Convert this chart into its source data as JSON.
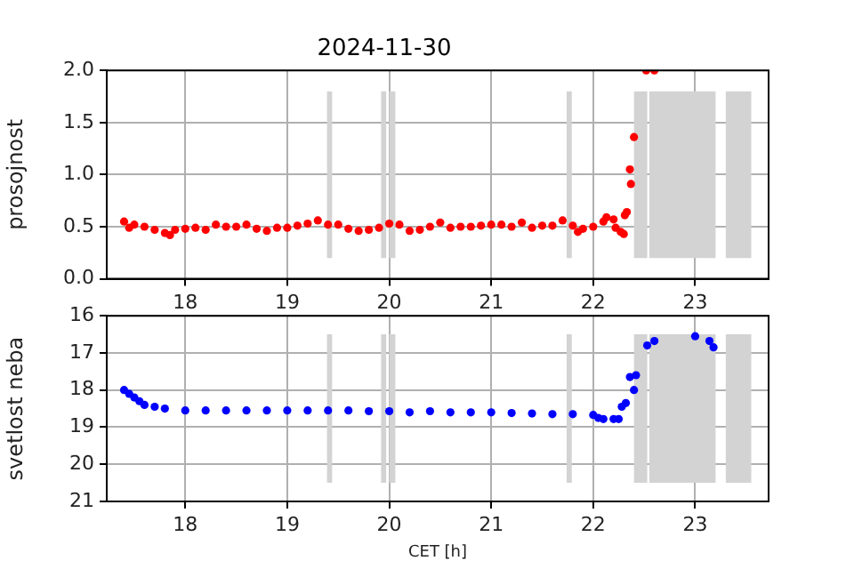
{
  "chart_data": [
    {
      "type": "scatter",
      "title": "2024-11-30",
      "ylabel": "prosojnost",
      "xlim": [
        17.23,
        23.72
      ],
      "xticks": [
        18,
        19,
        20,
        21,
        22,
        23
      ],
      "ylim": [
        0,
        2
      ],
      "yticks": [
        {
          "value": 0,
          "label": "0.0"
        },
        0.5,
        {
          "value": 1,
          "label": "1.0"
        },
        1.5,
        {
          "value": 2,
          "label": "2.0"
        }
      ],
      "grid": true,
      "legend": false,
      "marker": "circle",
      "series": [
        {
          "color": "#ff0000",
          "x": [
            17.4,
            17.45,
            17.5,
            17.6,
            17.7,
            17.8,
            17.85,
            17.9,
            18.0,
            18.1,
            18.2,
            18.3,
            18.4,
            18.5,
            18.6,
            18.7,
            18.8,
            18.9,
            19.0,
            19.1,
            19.2,
            19.3,
            19.4,
            19.5,
            19.6,
            19.7,
            19.8,
            19.9,
            20.0,
            20.1,
            20.2,
            20.3,
            20.4,
            20.5,
            20.6,
            20.7,
            20.8,
            20.9,
            21.0,
            21.1,
            21.2,
            21.3,
            21.4,
            21.5,
            21.6,
            21.7,
            21.8,
            21.85,
            21.9,
            22.0,
            22.1,
            22.13,
            22.2,
            22.22,
            22.27,
            22.3,
            22.31,
            22.33,
            22.36,
            22.37,
            22.4,
            22.52,
            22.6
          ],
          "values": [
            0.55,
            0.49,
            0.52,
            0.5,
            0.47,
            0.44,
            0.42,
            0.47,
            0.48,
            0.49,
            0.47,
            0.52,
            0.5,
            0.5,
            0.52,
            0.48,
            0.46,
            0.49,
            0.49,
            0.51,
            0.53,
            0.56,
            0.52,
            0.52,
            0.48,
            0.46,
            0.47,
            0.49,
            0.53,
            0.52,
            0.46,
            0.47,
            0.5,
            0.54,
            0.49,
            0.5,
            0.5,
            0.51,
            0.52,
            0.52,
            0.5,
            0.54,
            0.49,
            0.51,
            0.51,
            0.56,
            0.51,
            0.45,
            0.48,
            0.5,
            0.55,
            0.59,
            0.57,
            0.49,
            0.45,
            0.43,
            0.61,
            0.64,
            1.05,
            0.91,
            1.36,
            2.0,
            2.0
          ]
        }
      ],
      "bands": [
        {
          "axis": "x",
          "from": 19.39,
          "to": 19.44,
          "color": "#d3d3d3"
        },
        {
          "axis": "x",
          "from": 19.92,
          "to": 19.97,
          "color": "#d3d3d3"
        },
        {
          "axis": "x",
          "from": 20.0,
          "to": 20.06,
          "color": "#d3d3d3"
        },
        {
          "axis": "x",
          "from": 21.74,
          "to": 21.79,
          "color": "#d3d3d3"
        },
        {
          "axis": "x",
          "from": 22.4,
          "to": 22.53,
          "color": "#d3d3d3"
        },
        {
          "axis": "x",
          "from": 22.55,
          "to": 23.2,
          "color": "#d3d3d3"
        },
        {
          "axis": "x",
          "from": 23.3,
          "to": 23.55,
          "color": "#d3d3d3"
        }
      ]
    },
    {
      "type": "scatter",
      "ylabel": "svetlost neba",
      "xlabel": "CET [h]",
      "xlim": [
        17.23,
        23.72
      ],
      "xticks": [
        18,
        19,
        20,
        21,
        22,
        23
      ],
      "ylim": [
        21,
        16
      ],
      "yticks": [
        16,
        17,
        18,
        19,
        20,
        21
      ],
      "grid": true,
      "legend": false,
      "marker": "circle",
      "series": [
        {
          "color": "#0000ff",
          "x": [
            17.4,
            17.45,
            17.5,
            17.55,
            17.6,
            17.7,
            17.8,
            18.0,
            18.2,
            18.4,
            18.6,
            18.8,
            19.0,
            19.2,
            19.4,
            19.6,
            19.8,
            20.0,
            20.2,
            20.4,
            20.6,
            20.8,
            21.0,
            21.2,
            21.4,
            21.6,
            21.8,
            22.0,
            22.05,
            22.1,
            22.2,
            22.25,
            22.28,
            22.32,
            22.36,
            22.4,
            22.42,
            22.53,
            22.6,
            23.0,
            23.14,
            23.18
          ],
          "values": [
            18.0,
            18.1,
            18.2,
            18.3,
            18.4,
            18.45,
            18.5,
            18.55,
            18.55,
            18.55,
            18.55,
            18.55,
            18.55,
            18.55,
            18.55,
            18.55,
            18.57,
            18.57,
            18.6,
            18.57,
            18.6,
            18.6,
            18.6,
            18.62,
            18.63,
            18.65,
            18.65,
            18.67,
            18.75,
            18.78,
            18.78,
            18.78,
            18.45,
            18.35,
            17.65,
            18.0,
            17.6,
            16.8,
            16.68,
            16.55,
            16.68,
            16.85
          ]
        }
      ],
      "bands": [
        {
          "axis": "x",
          "from": 19.39,
          "to": 19.44,
          "color": "#d3d3d3"
        },
        {
          "axis": "x",
          "from": 19.92,
          "to": 19.97,
          "color": "#d3d3d3"
        },
        {
          "axis": "x",
          "from": 20.0,
          "to": 20.06,
          "color": "#d3d3d3"
        },
        {
          "axis": "x",
          "from": 21.74,
          "to": 21.79,
          "color": "#d3d3d3"
        },
        {
          "axis": "x",
          "from": 22.4,
          "to": 22.53,
          "color": "#d3d3d3"
        },
        {
          "axis": "x",
          "from": 22.55,
          "to": 23.2,
          "color": "#d3d3d3"
        },
        {
          "axis": "x",
          "from": 23.3,
          "to": 23.55,
          "color": "#d3d3d3"
        }
      ]
    }
  ]
}
